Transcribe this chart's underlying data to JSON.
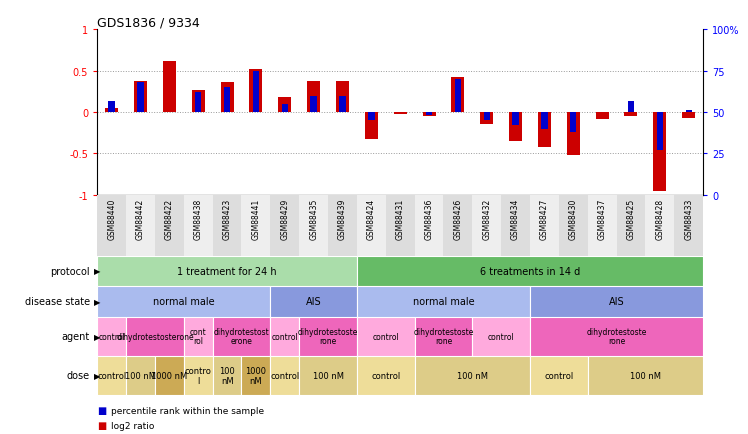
{
  "title": "GDS1836 / 9334",
  "samples": [
    "GSM88440",
    "GSM88442",
    "GSM88422",
    "GSM88438",
    "GSM88423",
    "GSM88441",
    "GSM88429",
    "GSM88435",
    "GSM88439",
    "GSM88424",
    "GSM88431",
    "GSM88436",
    "GSM88426",
    "GSM88432",
    "GSM88434",
    "GSM88427",
    "GSM88430",
    "GSM88437",
    "GSM88425",
    "GSM88428",
    "GSM88433"
  ],
  "log2_ratio": [
    0.05,
    0.38,
    0.62,
    0.27,
    0.36,
    0.52,
    0.18,
    0.38,
    0.38,
    -0.32,
    -0.02,
    -0.05,
    0.42,
    -0.15,
    -0.35,
    -0.42,
    -0.52,
    -0.08,
    -0.05,
    -0.95,
    -0.07
  ],
  "pct_rank": [
    57,
    68,
    50,
    62,
    65,
    75,
    55,
    60,
    60,
    45,
    50,
    48,
    70,
    45,
    42,
    40,
    38,
    50,
    57,
    27,
    51
  ],
  "ylim_left": [
    -1,
    1
  ],
  "ylim_right": [
    0,
    100
  ],
  "yticks_left": [
    -1,
    -0.5,
    0,
    0.5,
    1
  ],
  "yticks_right": [
    0,
    25,
    50,
    75,
    100
  ],
  "ytick_labels_left": [
    "-1",
    "-0.5",
    "0",
    "0.5",
    "1"
  ],
  "ytick_labels_right": [
    "0",
    "25",
    "50",
    "75",
    "100%"
  ],
  "hlines": [
    -0.5,
    0,
    0.5
  ],
  "bar_color_red": "#cc0000",
  "bar_color_blue": "#0000cc",
  "bg_color": "#ffffff",
  "protocol_row": {
    "groups": [
      {
        "text": "1 treatment for 24 h",
        "start": 0,
        "end": 9,
        "color": "#aaddaa"
      },
      {
        "text": "6 treatments in 14 d",
        "start": 9,
        "end": 21,
        "color": "#66bb66"
      }
    ]
  },
  "disease_state_row": {
    "groups": [
      {
        "text": "normal male",
        "start": 0,
        "end": 6,
        "color": "#aabbee"
      },
      {
        "text": "AIS",
        "start": 6,
        "end": 9,
        "color": "#8899dd"
      },
      {
        "text": "normal male",
        "start": 9,
        "end": 15,
        "color": "#aabbee"
      },
      {
        "text": "AIS",
        "start": 15,
        "end": 21,
        "color": "#8899dd"
      }
    ]
  },
  "agent_row": {
    "groups": [
      {
        "text": "control",
        "start": 0,
        "end": 1,
        "color": "#ffaadd"
      },
      {
        "text": "dihydrotestosterone",
        "start": 1,
        "end": 3,
        "color": "#ee66bb"
      },
      {
        "text": "cont\nrol",
        "start": 3,
        "end": 4,
        "color": "#ffaadd"
      },
      {
        "text": "dihydrotestost\nerone",
        "start": 4,
        "end": 6,
        "color": "#ee66bb"
      },
      {
        "text": "control",
        "start": 6,
        "end": 7,
        "color": "#ffaadd"
      },
      {
        "text": "dihydrotestoste\nrone",
        "start": 7,
        "end": 9,
        "color": "#ee66bb"
      },
      {
        "text": "control",
        "start": 9,
        "end": 11,
        "color": "#ffaadd"
      },
      {
        "text": "dihydrotestoste\nrone",
        "start": 11,
        "end": 13,
        "color": "#ee66bb"
      },
      {
        "text": "control",
        "start": 13,
        "end": 15,
        "color": "#ffaadd"
      },
      {
        "text": "dihydrotestoste\nrone",
        "start": 15,
        "end": 21,
        "color": "#ee66bb"
      }
    ]
  },
  "dose_row": {
    "groups": [
      {
        "text": "control",
        "start": 0,
        "end": 1,
        "color": "#eedd99"
      },
      {
        "text": "100 nM",
        "start": 1,
        "end": 2,
        "color": "#ddcc88"
      },
      {
        "text": "1000 nM",
        "start": 2,
        "end": 3,
        "color": "#ccaa55"
      },
      {
        "text": "contro\nl",
        "start": 3,
        "end": 4,
        "color": "#eedd99"
      },
      {
        "text": "100\nnM",
        "start": 4,
        "end": 5,
        "color": "#ddcc88"
      },
      {
        "text": "1000\nnM",
        "start": 5,
        "end": 6,
        "color": "#ccaa55"
      },
      {
        "text": "control",
        "start": 6,
        "end": 7,
        "color": "#eedd99"
      },
      {
        "text": "100 nM",
        "start": 7,
        "end": 9,
        "color": "#ddcc88"
      },
      {
        "text": "control",
        "start": 9,
        "end": 11,
        "color": "#eedd99"
      },
      {
        "text": "100 nM",
        "start": 11,
        "end": 15,
        "color": "#ddcc88"
      },
      {
        "text": "control",
        "start": 15,
        "end": 17,
        "color": "#eedd99"
      },
      {
        "text": "100 nM",
        "start": 17,
        "end": 21,
        "color": "#ddcc88"
      }
    ]
  },
  "row_labels": [
    "protocol",
    "disease state",
    "agent",
    "dose"
  ],
  "legend": [
    {
      "color": "#cc0000",
      "label": "log2 ratio"
    },
    {
      "color": "#0000cc",
      "label": "percentile rank within the sample"
    }
  ],
  "n_samples": 21
}
